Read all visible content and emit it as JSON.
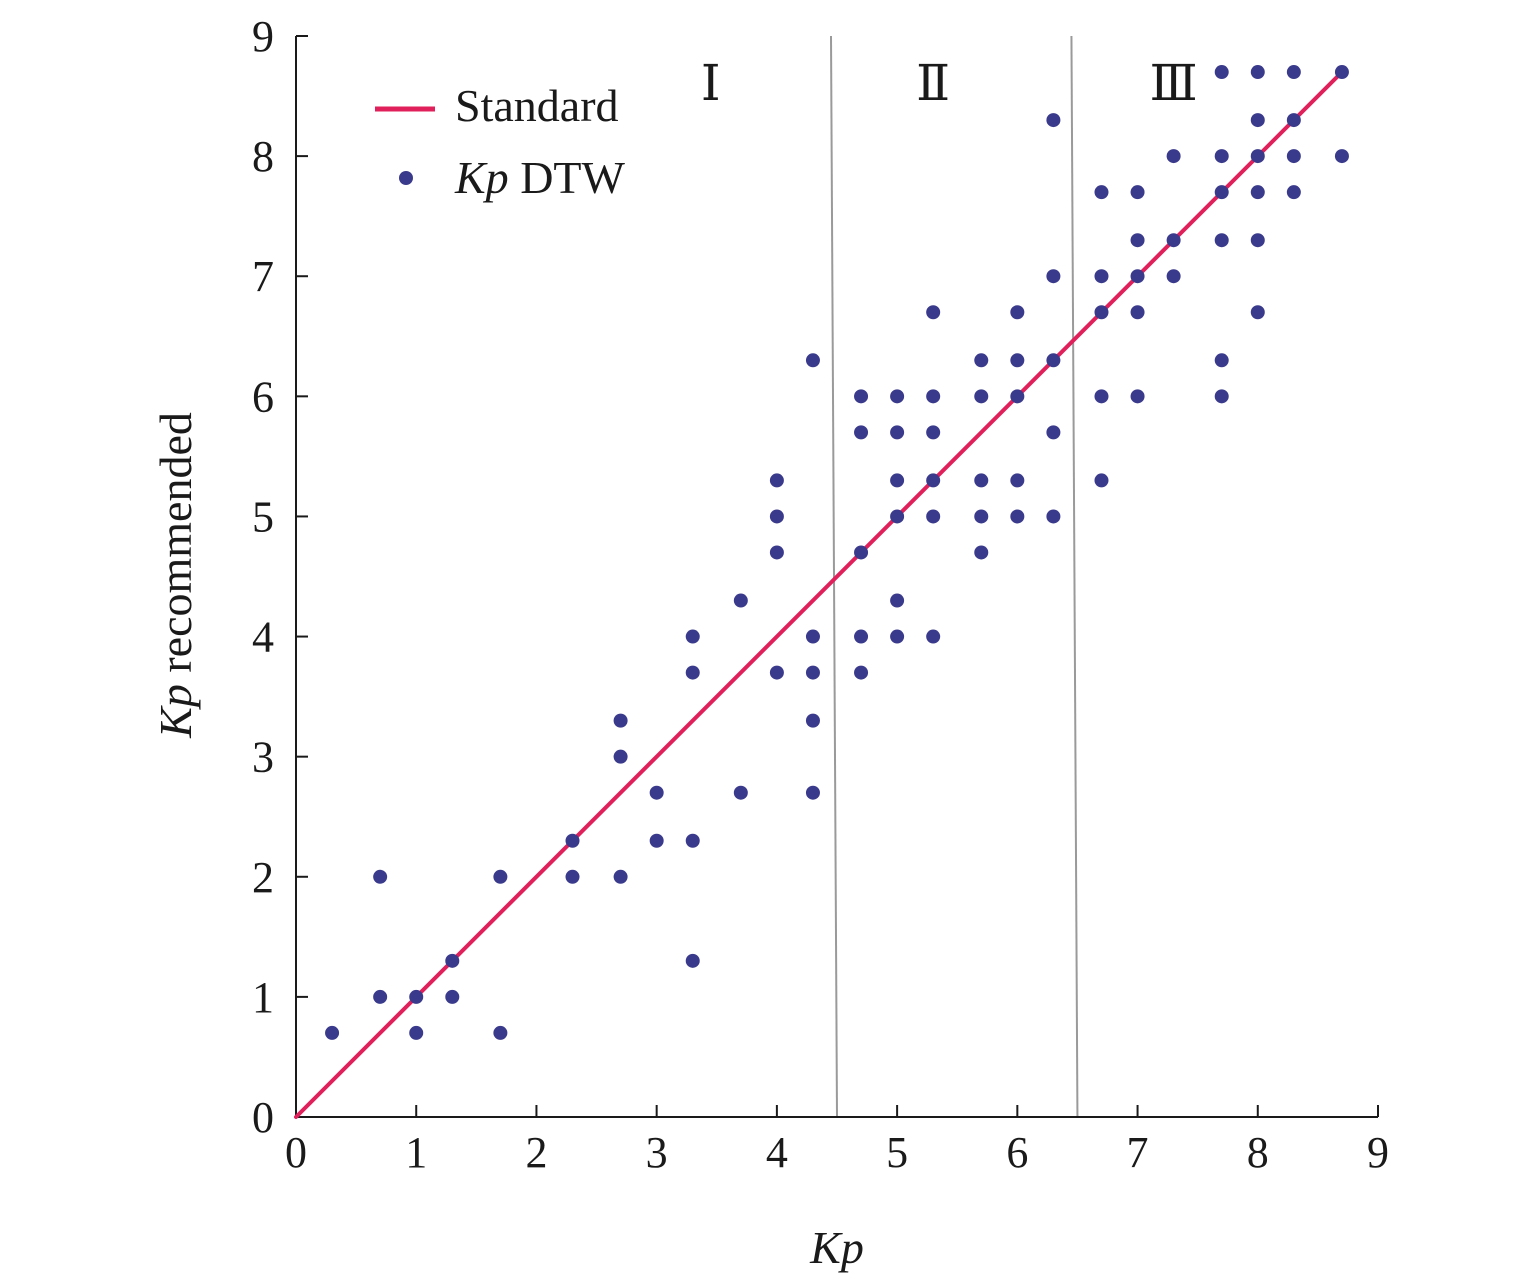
{
  "chart_data": {
    "type": "scatter",
    "xlabel": "Kp",
    "ylabel_italic": "Kp",
    "ylabel_rest": " recommended",
    "xlim": [
      0,
      9
    ],
    "ylim": [
      0,
      9
    ],
    "xticks": [
      "0",
      "1",
      "2",
      "3",
      "4",
      "5",
      "6",
      "7",
      "8",
      "9"
    ],
    "yticks": [
      "0",
      "1",
      "2",
      "3",
      "4",
      "5",
      "6",
      "7",
      "8",
      "9"
    ],
    "grid": false,
    "legend_position": "top-left",
    "region_dividers": [
      4.5,
      6.5
    ],
    "regions": [
      {
        "label": "Ⅰ",
        "x": 3.45
      },
      {
        "label": "Ⅱ",
        "x": 5.3
      },
      {
        "label": "Ⅲ",
        "x": 7.3
      }
    ],
    "series": [
      {
        "name": "Standard",
        "kind": "line",
        "color": "#e0205a",
        "points": [
          [
            0,
            0
          ],
          [
            8.7,
            8.7
          ]
        ]
      },
      {
        "name_italic": "Kp",
        "name_rest": " DTW",
        "kind": "scatter",
        "color": "#3a3a8c",
        "points": [
          [
            0.3,
            0.7
          ],
          [
            0.7,
            1
          ],
          [
            0.7,
            2
          ],
          [
            1,
            0.7
          ],
          [
            1,
            1
          ],
          [
            1.3,
            1
          ],
          [
            1.3,
            1.3
          ],
          [
            1.7,
            0.7
          ],
          [
            1.7,
            2
          ],
          [
            2.3,
            2
          ],
          [
            2.3,
            2.3
          ],
          [
            2.7,
            2
          ],
          [
            2.7,
            3
          ],
          [
            2.7,
            3.3
          ],
          [
            3,
            2.3
          ],
          [
            3,
            2.7
          ],
          [
            3.3,
            1.3
          ],
          [
            3.3,
            2.3
          ],
          [
            3.3,
            3.7
          ],
          [
            3.3,
            4
          ],
          [
            3.7,
            2.7
          ],
          [
            3.7,
            4.3
          ],
          [
            4,
            3.7
          ],
          [
            4,
            4.7
          ],
          [
            4,
            5
          ],
          [
            4,
            5.3
          ],
          [
            4.3,
            2.7
          ],
          [
            4.3,
            3.3
          ],
          [
            4.3,
            3.7
          ],
          [
            4.3,
            4
          ],
          [
            4.3,
            6.3
          ],
          [
            4.7,
            3.7
          ],
          [
            4.7,
            4
          ],
          [
            4.7,
            4.7
          ],
          [
            4.7,
            5.7
          ],
          [
            4.7,
            6
          ],
          [
            5,
            4
          ],
          [
            5,
            4.3
          ],
          [
            5,
            5
          ],
          [
            5,
            5.3
          ],
          [
            5,
            5.7
          ],
          [
            5,
            6
          ],
          [
            5.3,
            4
          ],
          [
            5.3,
            5
          ],
          [
            5.3,
            5.3
          ],
          [
            5.3,
            5.7
          ],
          [
            5.3,
            6
          ],
          [
            5.3,
            6.7
          ],
          [
            5.7,
            4.7
          ],
          [
            5.7,
            5
          ],
          [
            5.7,
            5.3
          ],
          [
            5.7,
            6
          ],
          [
            5.7,
            6.3
          ],
          [
            6,
            5
          ],
          [
            6,
            5.3
          ],
          [
            6,
            6
          ],
          [
            6,
            6.3
          ],
          [
            6,
            6.7
          ],
          [
            6.3,
            5
          ],
          [
            6.3,
            5.7
          ],
          [
            6.3,
            6.3
          ],
          [
            6.3,
            7
          ],
          [
            6.3,
            8.3
          ],
          [
            6.7,
            5.3
          ],
          [
            6.7,
            6
          ],
          [
            6.7,
            6.7
          ],
          [
            6.7,
            7
          ],
          [
            6.7,
            7.7
          ],
          [
            7,
            6
          ],
          [
            7,
            6.7
          ],
          [
            7,
            7
          ],
          [
            7,
            7.3
          ],
          [
            7,
            7.7
          ],
          [
            7.3,
            7
          ],
          [
            7.3,
            7.3
          ],
          [
            7.3,
            8
          ],
          [
            7.7,
            6
          ],
          [
            7.7,
            6.3
          ],
          [
            7.7,
            7.3
          ],
          [
            7.7,
            7.7
          ],
          [
            7.7,
            8
          ],
          [
            7.7,
            8.7
          ],
          [
            8,
            6.7
          ],
          [
            8,
            7.3
          ],
          [
            8,
            7.7
          ],
          [
            8,
            8
          ],
          [
            8,
            8.3
          ],
          [
            8,
            8.7
          ],
          [
            8.3,
            7.7
          ],
          [
            8.3,
            8
          ],
          [
            8.3,
            8.3
          ],
          [
            8.3,
            8.7
          ],
          [
            8.7,
            8
          ],
          [
            8.7,
            8.7
          ]
        ]
      }
    ]
  }
}
